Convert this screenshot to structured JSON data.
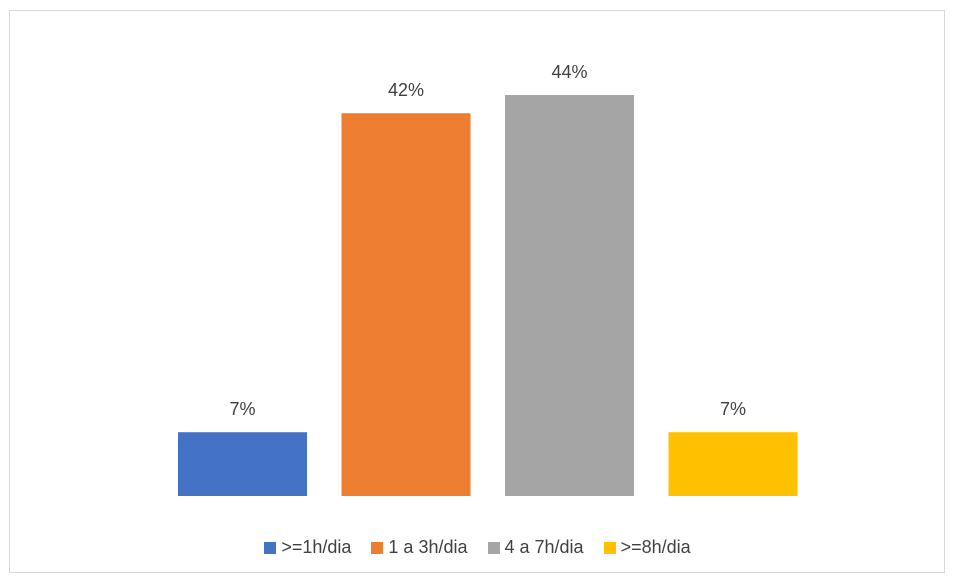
{
  "chart_data": {
    "type": "bar",
    "categories": [
      ">=1h/dia",
      "1 a 3h/dia",
      "4 a 7h/dia",
      ">=8h/dia"
    ],
    "values": [
      7,
      42,
      44,
      7
    ],
    "labels": [
      "7%",
      "42%",
      "44%",
      "7%"
    ],
    "colors": [
      "#4472C4",
      "#ED7D31",
      "#A5A5A5",
      "#FFC000"
    ],
    "title": "",
    "xlabel": "",
    "ylabel": "",
    "ylim": [
      0,
      45
    ],
    "grid": false,
    "legend_position": "bottom"
  }
}
